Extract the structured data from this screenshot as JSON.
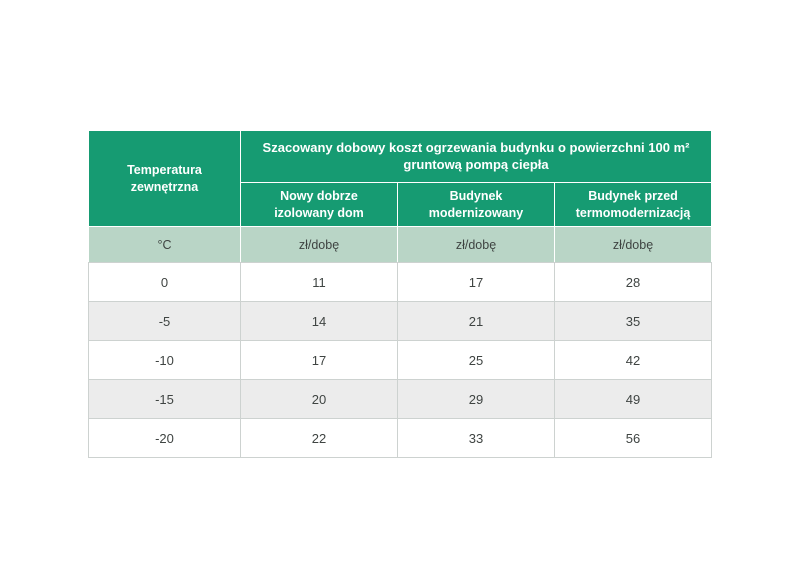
{
  "table": {
    "corner_header": "Temperatura zewnętrzna",
    "main_header_lines": [
      "Szacowany dobowy koszt ogrzewania budynku o powierzchni 100 m²",
      "gruntową pompą ciepła"
    ],
    "column_headers": [
      "Nowy dobrze izolowany dom",
      "Budynek modernizowany",
      "Budynek przed termomodernizacją"
    ],
    "units_row": [
      "°C",
      "zł/dobę",
      "zł/dobę",
      "zł/dobę"
    ],
    "rows": [
      {
        "temp": "0",
        "values": [
          "11",
          "17",
          "28"
        ]
      },
      {
        "temp": "-5",
        "values": [
          "14",
          "21",
          "35"
        ]
      },
      {
        "temp": "-10",
        "values": [
          "17",
          "25",
          "42"
        ]
      },
      {
        "temp": "-15",
        "values": [
          "20",
          "29",
          "49"
        ]
      },
      {
        "temp": "-20",
        "values": [
          "22",
          "33",
          "56"
        ]
      }
    ]
  },
  "colors": {
    "header_green": "#169b72",
    "units_green": "#b9d5c6",
    "row_alt_grey": "#ececec",
    "grid_grey": "#cdd2d0",
    "text_dark": "#3f4442",
    "header_text": "#ffffff"
  },
  "chart_data": {
    "type": "table",
    "title": "Szacowany dobowy koszt ogrzewania budynku o powierzchni 100 m² gruntową pompą ciepła",
    "row_label": "Temperatura zewnętrzna (°C)",
    "unit": "zł/dobę",
    "temperatures": [
      0,
      -5,
      -10,
      -15,
      -20
    ],
    "columns": [
      "Nowy dobrze izolowany dom",
      "Budynek modernizowany",
      "Budynek przed termomodernizacją"
    ],
    "series": [
      {
        "name": "Nowy dobrze izolowany dom",
        "values": [
          11,
          14,
          17,
          20,
          22
        ]
      },
      {
        "name": "Budynek modernizowany",
        "values": [
          17,
          21,
          25,
          29,
          33
        ]
      },
      {
        "name": "Budynek przed termomodernizacją",
        "values": [
          28,
          35,
          42,
          49,
          56
        ]
      }
    ]
  }
}
